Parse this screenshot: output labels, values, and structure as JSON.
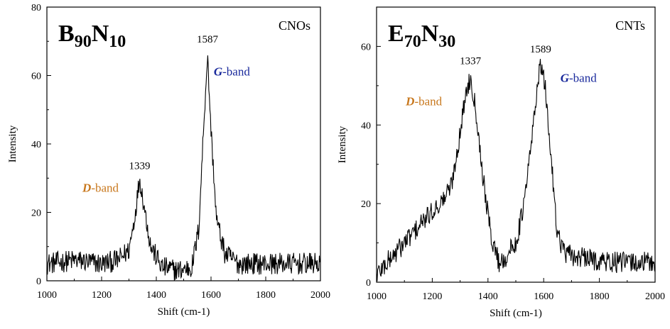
{
  "colors": {
    "d_band": "#c8781e",
    "g_band": "#1a2a9c",
    "line": "#000000"
  },
  "chart_data": [
    {
      "type": "line",
      "sample": {
        "main1": "B",
        "sub1": "90",
        "main2": "N",
        "sub2": "10"
      },
      "corner_label": "CNOs",
      "xlabel": "Shift (cm-1)",
      "ylabel": "Intensity",
      "xlim": [
        1000,
        2000
      ],
      "ylim": [
        0,
        80
      ],
      "xticks": [
        1000,
        1200,
        1400,
        1600,
        1800,
        2000
      ],
      "yticks": [
        0,
        20,
        40,
        60,
        80
      ],
      "peaks": [
        {
          "x": 1339,
          "y": 31,
          "label": "1339"
        },
        {
          "x": 1587,
          "y": 68,
          "label": "1587"
        }
      ],
      "bands": [
        {
          "letter": "D",
          "text": "-band",
          "color_key": "d_band",
          "x": 1130,
          "y": 26
        },
        {
          "letter": "G",
          "text": "-band",
          "color_key": "g_band",
          "x": 1610,
          "y": 60
        }
      ],
      "noise": 3.2,
      "baseline": 5,
      "series": [
        {
          "values": [
            [
              1000,
              5
            ],
            [
              1100,
              6
            ],
            [
              1200,
              5
            ],
            [
              1260,
              6
            ],
            [
              1300,
              9
            ],
            [
              1320,
              18
            ],
            [
              1339,
              30
            ],
            [
              1355,
              22
            ],
            [
              1380,
              10
            ],
            [
              1420,
              4
            ],
            [
              1480,
              3
            ],
            [
              1530,
              4
            ],
            [
              1555,
              15
            ],
            [
              1575,
              48
            ],
            [
              1587,
              66
            ],
            [
              1600,
              44
            ],
            [
              1620,
              18
            ],
            [
              1650,
              8
            ],
            [
              1700,
              5
            ],
            [
              1800,
              5
            ],
            [
              1900,
              5
            ],
            [
              2000,
              5
            ]
          ]
        }
      ]
    },
    {
      "type": "line",
      "sample": {
        "main1": "E",
        "sub1": "70",
        "main2": "N",
        "sub2": "30"
      },
      "corner_label": "CNTs",
      "xlabel": "Shift (cm-1)",
      "ylabel": "Intensity",
      "xlim": [
        1000,
        2000
      ],
      "ylim": [
        0,
        70
      ],
      "xticks": [
        1000,
        1200,
        1400,
        1600,
        1800,
        2000
      ],
      "yticks": [
        0,
        20,
        40,
        60
      ],
      "peaks": [
        {
          "x": 1337,
          "y": 54,
          "label": "1337"
        },
        {
          "x": 1589,
          "y": 57,
          "label": "1589"
        }
      ],
      "bands": [
        {
          "letter": "D",
          "text": "-band",
          "color_key": "d_band",
          "x": 1105,
          "y": 45
        },
        {
          "letter": "G",
          "text": "-band",
          "color_key": "g_band",
          "x": 1660,
          "y": 51
        }
      ],
      "noise": 2.8,
      "baseline": 5,
      "series": [
        {
          "values": [
            [
              1000,
              2
            ],
            [
              1050,
              6
            ],
            [
              1100,
              10
            ],
            [
              1150,
              14
            ],
            [
              1200,
              18
            ],
            [
              1240,
              21
            ],
            [
              1270,
              25
            ],
            [
              1300,
              38
            ],
            [
              1320,
              48
            ],
            [
              1337,
              52
            ],
            [
              1355,
              45
            ],
            [
              1380,
              28
            ],
            [
              1410,
              12
            ],
            [
              1440,
              5
            ],
            [
              1460,
              6
            ],
            [
              1500,
              10
            ],
            [
              1530,
              20
            ],
            [
              1560,
              38
            ],
            [
              1580,
              52
            ],
            [
              1589,
              55
            ],
            [
              1605,
              50
            ],
            [
              1625,
              33
            ],
            [
              1650,
              12
            ],
            [
              1680,
              7
            ],
            [
              1750,
              6
            ],
            [
              1850,
              5
            ],
            [
              1950,
              5
            ],
            [
              2000,
              5
            ]
          ]
        }
      ]
    }
  ]
}
